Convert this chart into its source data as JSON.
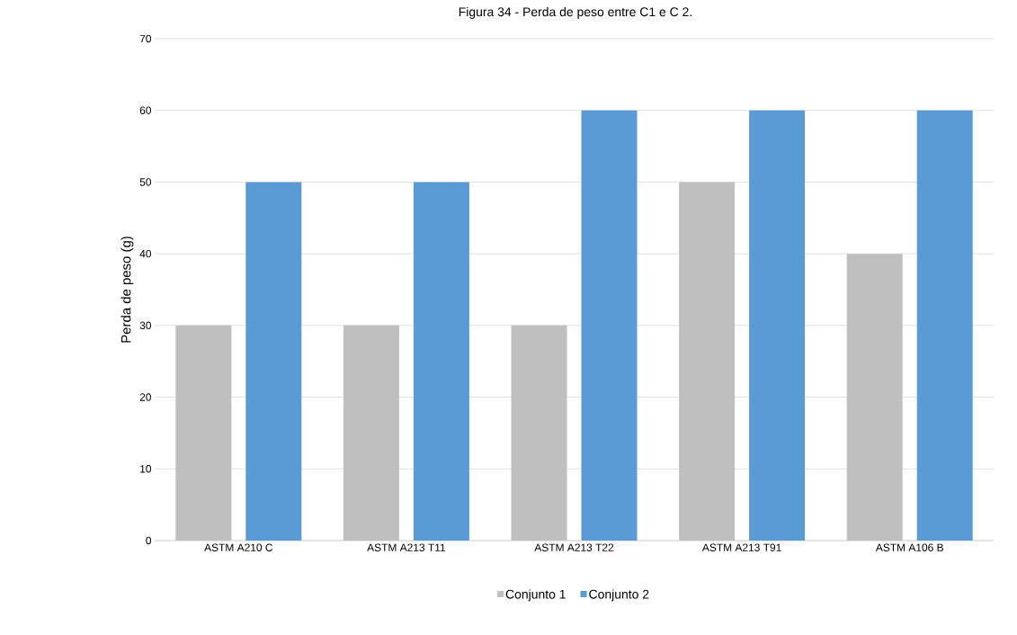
{
  "chart_data": {
    "type": "bar",
    "title": "Figura 34 - Perda de peso entre C1 e C 2.",
    "ylabel": "Perda de peso (g)",
    "categories": [
      "ASTM A210 C",
      "ASTM A213 T11",
      "ASTM A213 T22",
      "ASTM A213 T91",
      "ASTM A106 B"
    ],
    "series": [
      {
        "name": "Conjunto 1",
        "color": "#bfbfbf",
        "values": [
          30,
          30,
          30,
          50,
          40
        ]
      },
      {
        "name": "Conjunto 2",
        "color": "#5b9bd5",
        "values": [
          50,
          50,
          60,
          60,
          60
        ]
      }
    ],
    "ylim": [
      0,
      70
    ],
    "yticks": [
      0,
      10,
      20,
      30,
      40,
      50,
      60,
      70
    ],
    "grid": "y",
    "legend": "bottom"
  }
}
